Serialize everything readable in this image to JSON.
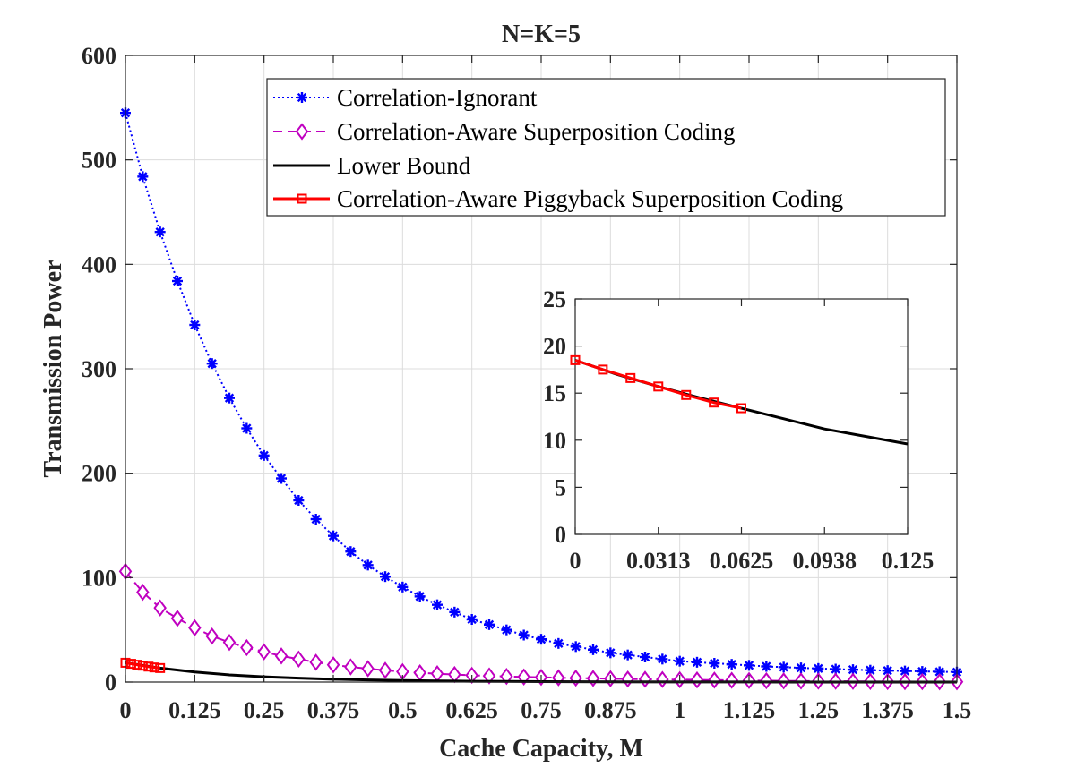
{
  "chart_data": [
    {
      "type": "line",
      "title": "N=K=5",
      "xlabel": "Cache Capacity, M",
      "ylabel": "Transmission Power",
      "xlim": [
        0,
        1.5
      ],
      "ylim": [
        0,
        600
      ],
      "xticks": [
        0,
        0.125,
        0.25,
        0.375,
        0.5,
        0.625,
        0.75,
        0.875,
        1,
        1.125,
        1.25,
        1.375,
        1.5
      ],
      "xtick_labels": [
        "0",
        "0.125",
        "0.25",
        "0.375",
        "0.5",
        "0.625",
        "0.75",
        "0.875",
        "1",
        "1.125",
        "1.25",
        "1.375",
        "1.5"
      ],
      "yticks": [
        0,
        100,
        200,
        300,
        400,
        500,
        600
      ],
      "ytick_labels": [
        "0",
        "100",
        "200",
        "300",
        "400",
        "500",
        "600"
      ],
      "grid": true,
      "legend_position": "top-right",
      "series": [
        {
          "name": "Correlation-Ignorant",
          "color": "#0000ff",
          "line_style": "dotted",
          "marker": "asterisk",
          "x": [
            0,
            0.03125,
            0.0625,
            0.09375,
            0.125,
            0.15625,
            0.1875,
            0.21875,
            0.25,
            0.28125,
            0.3125,
            0.34375,
            0.375,
            0.40625,
            0.4375,
            0.46875,
            0.5,
            0.53125,
            0.5625,
            0.59375,
            0.625,
            0.65625,
            0.6875,
            0.71875,
            0.75,
            0.78125,
            0.8125,
            0.84375,
            0.875,
            0.90625,
            0.9375,
            0.96875,
            1,
            1.03125,
            1.0625,
            1.09375,
            1.125,
            1.15625,
            1.1875,
            1.21875,
            1.25,
            1.28125,
            1.3125,
            1.34375,
            1.375,
            1.40625,
            1.4375,
            1.46875,
            1.5
          ],
          "y": [
            545,
            484,
            431,
            384,
            342,
            305,
            272,
            243,
            217,
            195,
            174,
            156,
            140,
            125,
            112,
            101,
            91,
            82,
            74,
            67,
            60,
            55,
            50,
            45,
            41,
            37,
            34,
            31,
            28,
            26,
            24,
            22,
            20,
            19,
            18,
            17,
            16,
            15,
            14.3,
            13.6,
            13,
            12.4,
            11.9,
            11.4,
            11,
            10.6,
            10.2,
            9.9,
            9.6
          ]
        },
        {
          "name": "Correlation-Aware Superposition Coding",
          "color": "#c000c0",
          "line_style": "dashed",
          "marker": "diamond",
          "x": [
            0,
            0.03125,
            0.0625,
            0.09375,
            0.125,
            0.15625,
            0.1875,
            0.21875,
            0.25,
            0.28125,
            0.3125,
            0.34375,
            0.375,
            0.40625,
            0.4375,
            0.46875,
            0.5,
            0.53125,
            0.5625,
            0.59375,
            0.625,
            0.65625,
            0.6875,
            0.71875,
            0.75,
            0.78125,
            0.8125,
            0.84375,
            0.875,
            0.90625,
            0.9375,
            0.96875,
            1,
            1.03125,
            1.0625,
            1.09375,
            1.125,
            1.15625,
            1.1875,
            1.21875,
            1.25,
            1.28125,
            1.3125,
            1.34375,
            1.375,
            1.40625,
            1.4375,
            1.46875,
            1.5
          ],
          "y": [
            106,
            86,
            71,
            61,
            52,
            44,
            38,
            33,
            29,
            25,
            22,
            19,
            16.5,
            14.5,
            12.8,
            11.3,
            10,
            8.9,
            8,
            7.2,
            6.5,
            5.9,
            5.4,
            4.9,
            4.5,
            4.1,
            3.8,
            3.5,
            3.2,
            2.9,
            2.7,
            2.5,
            2.3,
            2.1,
            1.9,
            1.7,
            1.5,
            1.3,
            1.1,
            1,
            0.9,
            0.8,
            0.7,
            0.6,
            0.5,
            0.4,
            0.35,
            0.3,
            0.25
          ]
        },
        {
          "name": "Lower Bound",
          "color": "#000000",
          "line_style": "solid",
          "marker": "none",
          "x": [
            0,
            0.0625,
            0.125,
            0.1875,
            0.25,
            0.3125,
            0.375,
            0.4375,
            0.5,
            0.5625,
            0.625,
            0.6875,
            0.75,
            0.875,
            1,
            1.125,
            1.25,
            1.375,
            1.5
          ],
          "y": [
            18.5,
            13.4,
            9.6,
            6.9,
            5,
            3.7,
            2.7,
            2,
            1.5,
            1.1,
            0.8,
            0.6,
            0.45,
            0.25,
            0.14,
            0.08,
            0.04,
            0.02,
            0.01
          ]
        },
        {
          "name": "Correlation-Aware Piggyback Superposition Coding",
          "color": "#ff0000",
          "line_style": "solid",
          "marker": "square",
          "x": [
            0,
            0.0104,
            0.0208,
            0.03125,
            0.0417,
            0.0521,
            0.0625
          ],
          "y": [
            18.5,
            17.5,
            16.6,
            15.7,
            14.8,
            14.0,
            13.4
          ]
        }
      ]
    },
    {
      "type": "line",
      "title": "",
      "xlabel": "",
      "ylabel": "",
      "xlim": [
        0,
        0.125
      ],
      "ylim": [
        0,
        25
      ],
      "xticks": [
        0,
        0.03125,
        0.0625,
        0.09375,
        0.125
      ],
      "xtick_labels": [
        "0",
        "0.0313",
        "0.0625",
        "0.0938",
        "0.125"
      ],
      "yticks": [
        0,
        5,
        10,
        15,
        20,
        25
      ],
      "ytick_labels": [
        "0",
        "5",
        "10",
        "15",
        "20",
        "25"
      ],
      "grid": false,
      "series": [
        {
          "name": "Lower Bound",
          "color": "#000000",
          "line_style": "solid",
          "marker": "none",
          "x": [
            0,
            0.0156,
            0.03125,
            0.0469,
            0.0625,
            0.0781,
            0.09375,
            0.1094,
            0.125
          ],
          "y": [
            18.5,
            17.0,
            15.7,
            14.5,
            13.4,
            12.3,
            11.2,
            10.4,
            9.6
          ]
        },
        {
          "name": "Correlation-Aware Piggyback Superposition Coding",
          "color": "#ff0000",
          "line_style": "solid",
          "marker": "square",
          "x": [
            0,
            0.0104,
            0.0208,
            0.03125,
            0.0417,
            0.0521,
            0.0625
          ],
          "y": [
            18.5,
            17.5,
            16.6,
            15.7,
            14.8,
            14.0,
            13.4
          ]
        }
      ]
    }
  ]
}
